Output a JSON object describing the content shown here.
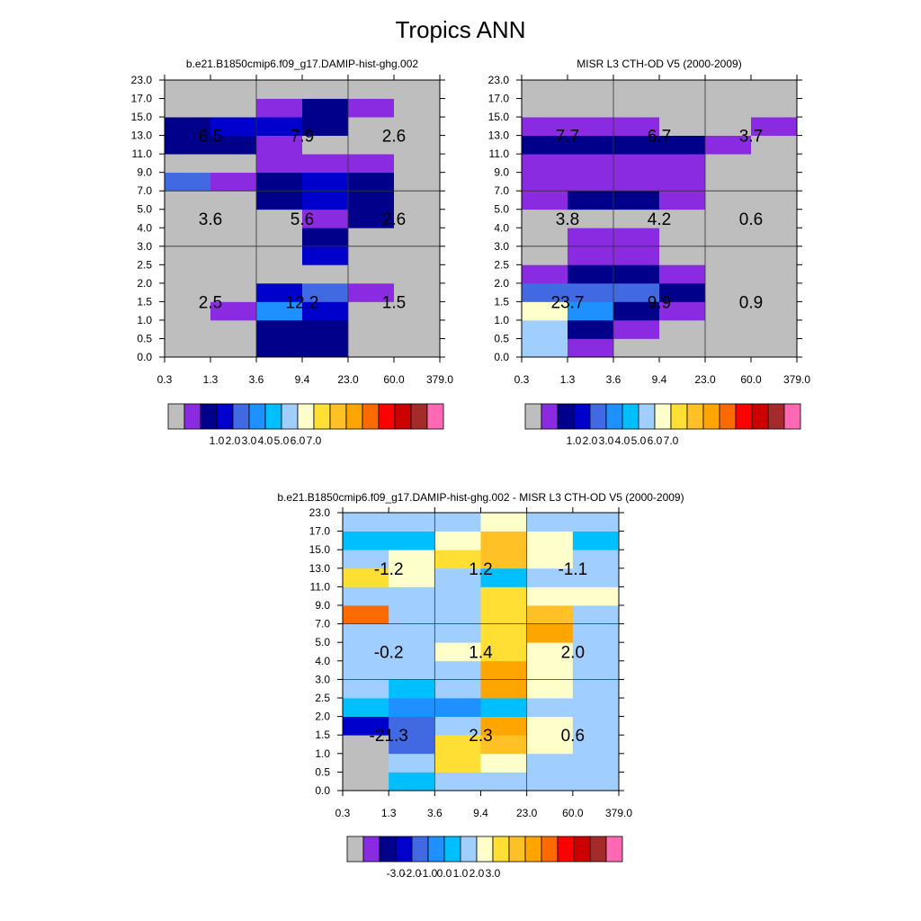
{
  "page": {
    "title": "Tropics ANN"
  },
  "colors": {
    "palette": [
      "#BEBEBE",
      "#8A2BE2",
      "#00008B",
      "#0000CD",
      "#4169E1",
      "#1E90FF",
      "#00BFFF",
      "#A0CFFF",
      "#FFFFCC",
      "#FFDF33",
      "#FFC125",
      "#FFA500",
      "#FF6A00",
      "#FF0000",
      "#CD0000",
      "#A52A2A",
      "#FF69B4"
    ]
  },
  "chart_data": [
    {
      "type": "heatmap",
      "title": "b.e21.B1850cmip6.f09_g17.DAMIP-hist-ghg.002",
      "x_ticks": [
        "0.3",
        "1.3",
        "3.6",
        "9.4",
        "23.0",
        "60.0",
        "379.0"
      ],
      "y_ticks": [
        "0.0",
        "0.5",
        "1.0",
        "1.5",
        "2.0",
        "2.5",
        "3.0",
        "4.0",
        "5.0",
        "7.0",
        "9.0",
        "11.0",
        "13.0",
        "15.0",
        "17.0",
        "23.0"
      ],
      "cells": [
        [
          0,
          0,
          2,
          2,
          0,
          0
        ],
        [
          0,
          0,
          2,
          2,
          0,
          0
        ],
        [
          0,
          1,
          5,
          3,
          0,
          0
        ],
        [
          0,
          0,
          3,
          4,
          1,
          0
        ],
        [
          0,
          0,
          0,
          0,
          0,
          0
        ],
        [
          0,
          0,
          0,
          3,
          0,
          0
        ],
        [
          0,
          0,
          0,
          2,
          0,
          0
        ],
        [
          0,
          0,
          0,
          1,
          2,
          0
        ],
        [
          0,
          0,
          2,
          3,
          2,
          0
        ],
        [
          4,
          1,
          2,
          3,
          2,
          0
        ],
        [
          0,
          0,
          1,
          1,
          1,
          0
        ],
        [
          2,
          2,
          1,
          0,
          0,
          0
        ],
        [
          2,
          3,
          3,
          2,
          0,
          0
        ],
        [
          0,
          0,
          1,
          2,
          1,
          0
        ],
        [
          0,
          0,
          0,
          0,
          0,
          0
        ]
      ],
      "region_labels": [
        [
          "2.5",
          "12.2",
          "1.5"
        ],
        [
          "3.6",
          "5.6",
          "2.6"
        ],
        [
          "6.5",
          "7.9",
          "2.6"
        ]
      ],
      "colorbar_ticks": [
        "1.0",
        "2.0",
        "3.0",
        "4.0",
        "5.0",
        "6.0",
        "7.0"
      ]
    },
    {
      "type": "heatmap",
      "title": "MISR L3 CTH-OD V5 (2000-2009)",
      "x_ticks": [
        "0.3",
        "1.3",
        "3.6",
        "9.4",
        "23.0",
        "60.0",
        "379.0"
      ],
      "y_ticks": [
        "0.0",
        "0.5",
        "1.0",
        "1.5",
        "2.0",
        "2.5",
        "3.0",
        "4.0",
        "5.0",
        "7.0",
        "9.0",
        "11.0",
        "13.0",
        "15.0",
        "17.0",
        "23.0"
      ],
      "cells": [
        [
          7,
          1,
          0,
          0,
          0,
          0
        ],
        [
          7,
          2,
          1,
          0,
          0,
          0
        ],
        [
          8,
          5,
          2,
          1,
          0,
          0
        ],
        [
          4,
          4,
          4,
          2,
          0,
          0
        ],
        [
          1,
          2,
          2,
          1,
          0,
          0
        ],
        [
          0,
          1,
          1,
          0,
          0,
          0
        ],
        [
          0,
          1,
          1,
          0,
          0,
          0
        ],
        [
          0,
          0,
          0,
          0,
          0,
          0
        ],
        [
          1,
          2,
          2,
          1,
          0,
          0
        ],
        [
          1,
          1,
          1,
          1,
          0,
          0
        ],
        [
          1,
          1,
          1,
          1,
          0,
          0
        ],
        [
          2,
          2,
          2,
          2,
          1,
          0
        ],
        [
          1,
          1,
          1,
          0,
          0,
          1
        ],
        [
          0,
          0,
          0,
          0,
          0,
          0
        ],
        [
          0,
          0,
          0,
          0,
          0,
          0
        ]
      ],
      "region_labels": [
        [
          "23.7",
          "9.9",
          "0.9"
        ],
        [
          "3.8",
          "4.2",
          "0.6"
        ],
        [
          "7.7",
          "6.7",
          "3.7"
        ]
      ],
      "colorbar_ticks": [
        "1.0",
        "2.0",
        "3.0",
        "4.0",
        "5.0",
        "6.0",
        "7.0"
      ]
    },
    {
      "type": "heatmap",
      "title": "b.e21.B1850cmip6.f09_g17.DAMIP-hist-ghg.002 - MISR L3 CTH-OD V5 (2000-2009)",
      "x_ticks": [
        "0.3",
        "1.3",
        "3.6",
        "9.4",
        "23.0",
        "60.0",
        "379.0"
      ],
      "y_ticks": [
        "0.0",
        "0.5",
        "1.0",
        "1.5",
        "2.0",
        "2.5",
        "3.0",
        "4.0",
        "5.0",
        "7.0",
        "9.0",
        "11.0",
        "13.0",
        "15.0",
        "17.0",
        "23.0"
      ],
      "cells": [
        [
          0,
          6,
          7,
          7,
          7,
          7
        ],
        [
          0,
          7,
          9,
          8,
          7,
          7
        ],
        [
          0,
          4,
          9,
          10,
          8,
          7
        ],
        [
          3,
          4,
          7,
          11,
          8,
          7
        ],
        [
          6,
          5,
          5,
          6,
          7,
          7
        ],
        [
          7,
          6,
          7,
          11,
          8,
          7
        ],
        [
          7,
          7,
          7,
          11,
          8,
          7
        ],
        [
          7,
          7,
          8,
          9,
          8,
          7
        ],
        [
          7,
          7,
          7,
          9,
          11,
          7
        ],
        [
          12,
          7,
          7,
          9,
          10,
          7
        ],
        [
          7,
          7,
          7,
          9,
          8,
          8
        ],
        [
          9,
          8,
          7,
          6,
          7,
          7
        ],
        [
          7,
          8,
          9,
          10,
          8,
          7
        ],
        [
          6,
          6,
          8,
          10,
          8,
          6
        ],
        [
          7,
          7,
          7,
          8,
          7,
          7
        ]
      ],
      "region_labels": [
        [
          "-21.3",
          "2.3",
          "0.6"
        ],
        [
          "-0.2",
          "1.4",
          "2.0"
        ],
        [
          "-1.2",
          "1.2",
          "-1.1"
        ]
      ],
      "colorbar_ticks": [
        "-3.0",
        "-2.0",
        "-1.0",
        "0.0",
        "1.0",
        "2.0",
        "3.0"
      ]
    }
  ]
}
